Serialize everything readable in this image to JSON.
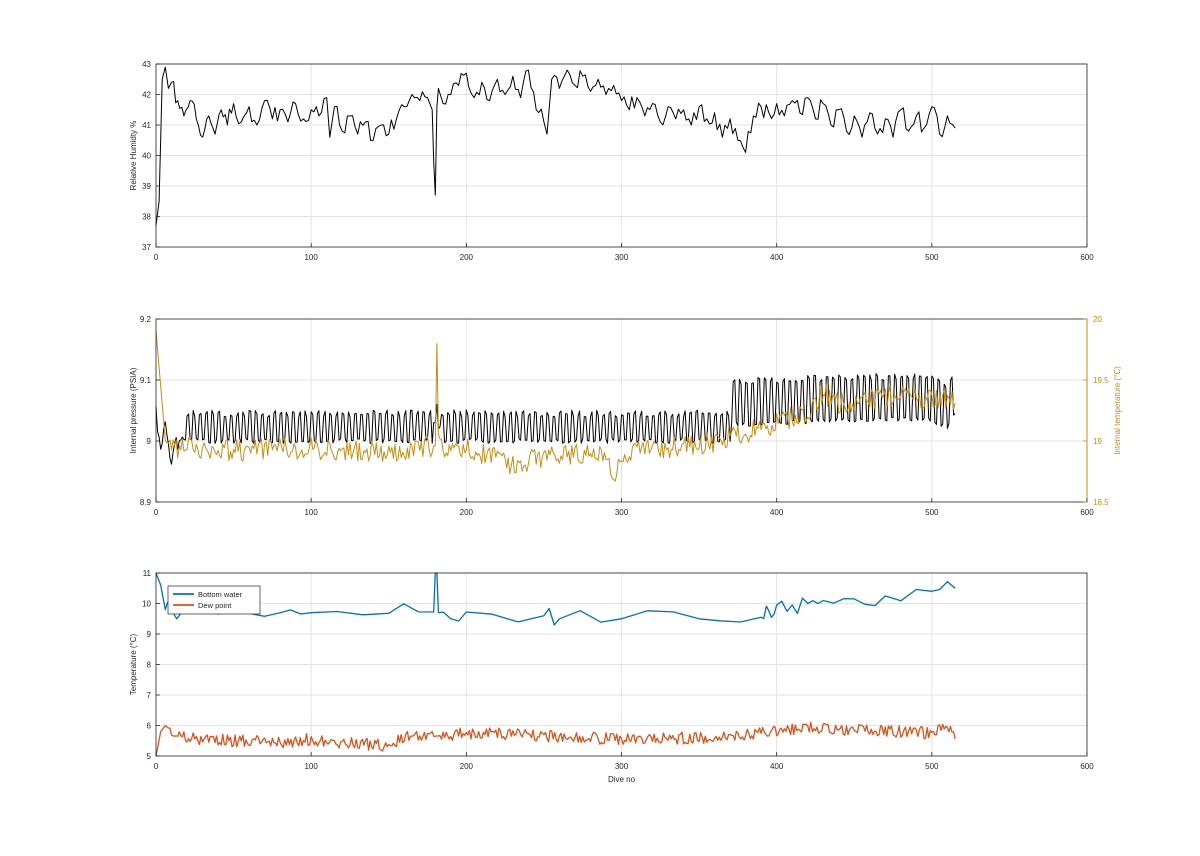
{
  "chart_data": [
    {
      "type": "line",
      "title": "",
      "xlabel": "",
      "ylabel": "Relative Humidty %",
      "xlim": [
        0,
        600
      ],
      "ylim": [
        37,
        43
      ],
      "xticks": [
        0,
        100,
        200,
        300,
        400,
        500,
        600
      ],
      "yticks": [
        37,
        38,
        39,
        40,
        41,
        42,
        43
      ],
      "grid": true,
      "series": [
        {
          "color": "#000000",
          "x": [
            0,
            2,
            4,
            6,
            8,
            10,
            14,
            18,
            22,
            26,
            30,
            34,
            38,
            42,
            46,
            50,
            55,
            60,
            65,
            70,
            75,
            80,
            85,
            90,
            95,
            100,
            105,
            110,
            112,
            115,
            120,
            125,
            130,
            135,
            140,
            145,
            150,
            155,
            160,
            165,
            170,
            175,
            178,
            179,
            180,
            181,
            182,
            185,
            190,
            195,
            200,
            205,
            210,
            215,
            220,
            225,
            230,
            235,
            240,
            245,
            250,
            252,
            255,
            260,
            265,
            270,
            275,
            280,
            285,
            290,
            295,
            300,
            305,
            310,
            315,
            320,
            325,
            330,
            335,
            340,
            345,
            350,
            355,
            360,
            365,
            370,
            375,
            380,
            385,
            390,
            395,
            400,
            405,
            410,
            415,
            420,
            425,
            430,
            435,
            440,
            445,
            450,
            455,
            460,
            465,
            470,
            475,
            480,
            485,
            490,
            495,
            500,
            505,
            510,
            515
          ],
          "y": [
            37.7,
            38.5,
            42.5,
            42.9,
            42.2,
            42.4,
            41.8,
            41.3,
            41.8,
            41.2,
            40.6,
            41.3,
            40.7,
            41.5,
            41.0,
            41.7,
            41.1,
            41.6,
            41.0,
            41.8,
            41.2,
            41.5,
            41.1,
            41.7,
            41.2,
            41.5,
            41.3,
            41.9,
            40.6,
            41.6,
            40.8,
            41.3,
            40.7,
            41.1,
            40.5,
            41.0,
            40.7,
            41.2,
            41.6,
            42.0,
            41.8,
            41.9,
            41.5,
            39.8,
            38.7,
            41.6,
            42.2,
            41.7,
            42.0,
            42.3,
            42.7,
            41.9,
            42.4,
            41.8,
            42.5,
            42.0,
            42.6,
            41.9,
            42.8,
            41.5,
            41.1,
            40.7,
            42.5,
            42.2,
            42.8,
            42.3,
            42.6,
            42.1,
            42.5,
            42.0,
            42.3,
            41.8,
            41.5,
            41.9,
            41.3,
            41.7,
            41.1,
            41.6,
            41.2,
            41.5,
            41.0,
            41.6,
            41.2,
            41.4,
            40.6,
            41.2,
            40.5,
            40.1,
            41.3,
            41.6,
            41.4,
            41.7,
            41.3,
            41.8,
            41.4,
            41.9,
            41.2,
            41.7,
            41.0,
            41.5,
            40.8,
            41.3,
            40.6,
            41.4,
            40.7,
            41.2,
            40.6,
            41.5,
            40.8,
            41.3,
            40.9,
            41.6,
            40.7,
            41.3,
            40.9
          ]
        }
      ]
    },
    {
      "type": "line",
      "title": "",
      "xlabel": "",
      "ylabel": "Internal pressure (PSIA)",
      "ylabel_right": "Internal temperature (°C)",
      "xlim": [
        0,
        600
      ],
      "ylim": [
        8.9,
        9.2
      ],
      "ylim_right": [
        18.5,
        20
      ],
      "xticks": [
        0,
        100,
        200,
        300,
        400,
        500,
        600
      ],
      "yticks": [
        8.9,
        9,
        9.1,
        9.2
      ],
      "yticks_right": [
        18.5,
        19,
        19.5,
        20
      ],
      "grid": true,
      "series": [
        {
          "color": "#000000",
          "axis": "left",
          "x": [
            0,
            3,
            6,
            10,
            14,
            18,
            180,
            181,
            182,
            185,
            300,
            350,
            400,
            450,
            500,
            510,
            515
          ],
          "y": [
            9.05,
            8.98,
            9.03,
            8.97,
            9.0,
            9.02,
            9.03,
            9.06,
            9.02,
            9.03,
            9.02,
            9.04,
            9.05,
            9.06,
            9.06,
            9.03,
            9.08
          ],
          "oscillation_low": 9.0,
          "oscillation_high": 9.045
        },
        {
          "color": "#c88d12",
          "axis": "right",
          "x": [
            0,
            2,
            4,
            6,
            10,
            20,
            40,
            60,
            80,
            100,
            120,
            140,
            160,
            180,
            181,
            182,
            185,
            200,
            220,
            230,
            250,
            270,
            290,
            296,
            300,
            320,
            340,
            360,
            380,
            400,
            420,
            430,
            440,
            460,
            480,
            500,
            515
          ],
          "y": [
            19.9,
            19.6,
            19.3,
            19.0,
            18.95,
            18.95,
            18.93,
            18.92,
            18.93,
            18.94,
            18.92,
            18.91,
            18.93,
            18.96,
            19.8,
            19.05,
            18.95,
            18.93,
            18.88,
            18.8,
            18.87,
            18.89,
            18.9,
            18.65,
            18.9,
            18.93,
            18.95,
            19.0,
            19.07,
            19.15,
            19.25,
            19.4,
            19.3,
            19.35,
            19.38,
            19.35,
            19.33
          ],
          "noise_amplitude": 0.09
        }
      ]
    },
    {
      "type": "line",
      "title": "",
      "xlabel": "Dive no",
      "ylabel": "Temperature (°C)",
      "xlim": [
        0,
        600
      ],
      "ylim": [
        5,
        11
      ],
      "xticks": [
        0,
        100,
        200,
        300,
        400,
        500,
        600
      ],
      "yticks": [
        5,
        6,
        7,
        8,
        9,
        10,
        11
      ],
      "grid": true,
      "legend_position": "top-left",
      "series": [
        {
          "name": "Bottom water",
          "color": "#0072bd",
          "x": [
            0,
            3,
            6,
            10,
            20,
            50,
            80,
            100,
            150,
            179,
            180,
            181,
            182,
            185,
            200,
            250,
            260,
            300,
            350,
            390,
            395,
            400,
            410,
            420,
            430,
            450,
            470,
            500,
            515
          ],
          "y": [
            11.0,
            10.6,
            9.8,
            9.78,
            9.75,
            9.73,
            9.7,
            9.7,
            9.68,
            9.72,
            11.1,
            11.0,
            9.7,
            9.72,
            9.72,
            9.6,
            9.5,
            9.5,
            9.5,
            9.55,
            9.75,
            9.95,
            9.95,
            10.0,
            10.1,
            10.15,
            10.25,
            10.4,
            10.5
          ]
        },
        {
          "name": "Dew point",
          "color": "#d95319",
          "x": [
            0,
            3,
            6,
            10,
            20,
            50,
            80,
            100,
            130,
            150,
            160,
            180,
            200,
            230,
            260,
            300,
            350,
            380,
            400,
            430,
            450,
            480,
            500,
            510,
            515
          ],
          "y": [
            5.0,
            5.8,
            6.0,
            5.8,
            5.6,
            5.5,
            5.45,
            5.55,
            5.4,
            5.35,
            5.6,
            5.65,
            5.75,
            5.7,
            5.65,
            5.55,
            5.6,
            5.7,
            5.8,
            5.95,
            5.85,
            5.8,
            5.75,
            6.0,
            5.75
          ],
          "noise_amplitude": 0.2
        }
      ]
    }
  ]
}
